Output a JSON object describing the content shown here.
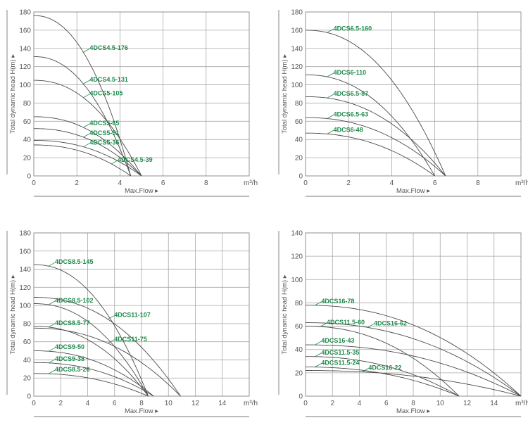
{
  "colors": {
    "curve": "#4a4a4a",
    "label": "#1f8a4c",
    "grid": "#a8a8a8"
  },
  "chart_data": [
    {
      "type": "line",
      "ylabel": "Total dynamic head H(m) ▸",
      "xlabel": "Max.Flow ▸",
      "xunit": "m³/h",
      "xlim": [
        0,
        10
      ],
      "ylim": [
        0,
        180
      ],
      "xticks": [
        0,
        2,
        4,
        6,
        8
      ],
      "yticks": [
        0,
        20,
        40,
        60,
        80,
        100,
        120,
        140,
        160,
        180
      ],
      "grid": true,
      "series": [
        {
          "name": "4DCS4.5-176",
          "shutoff_head": 176,
          "max_flow": 4.5
        },
        {
          "name": "4DCS4.5-131",
          "shutoff_head": 131,
          "max_flow": 4.5
        },
        {
          "name": "4DCS5-105",
          "shutoff_head": 105,
          "max_flow": 5
        },
        {
          "name": "4DCS5-65",
          "shutoff_head": 65,
          "max_flow": 5
        },
        {
          "name": "4DCS5-51",
          "shutoff_head": 52,
          "max_flow": 5
        },
        {
          "name": "4DCS5-36",
          "shutoff_head": 39,
          "max_flow": 5
        },
        {
          "name": "4DCS4.5-39",
          "shutoff_head": 34,
          "max_flow": 4.5
        }
      ]
    },
    {
      "type": "line",
      "ylabel": "Total dynamic head H(m) ▸",
      "xlabel": "Max.Flow ▸",
      "xunit": "m³/h",
      "xlim": [
        0,
        10
      ],
      "ylim": [
        0,
        180
      ],
      "xticks": [
        0,
        2,
        4,
        6,
        8
      ],
      "yticks": [
        0,
        20,
        40,
        60,
        80,
        100,
        120,
        140,
        160,
        180
      ],
      "grid": true,
      "series": [
        {
          "name": "4DCS6.5-160",
          "shutoff_head": 160,
          "max_flow": 6.5
        },
        {
          "name": "4DCS6-110",
          "shutoff_head": 111,
          "max_flow": 6
        },
        {
          "name": "4DCS6.5-87",
          "shutoff_head": 87,
          "max_flow": 6.5
        },
        {
          "name": "4DCS6.5-63",
          "shutoff_head": 64,
          "max_flow": 6.5
        },
        {
          "name": "4DCS6-48",
          "shutoff_head": 47,
          "max_flow": 6
        }
      ]
    },
    {
      "type": "line",
      "ylabel": "Total dynamic head H(m) ▸",
      "xlabel": "Max.Flow ▸",
      "xunit": "m³/h",
      "xlim": [
        0,
        16
      ],
      "ylim": [
        0,
        180
      ],
      "xticks": [
        0,
        2,
        4,
        6,
        8,
        10,
        12,
        14
      ],
      "yticks": [
        0,
        20,
        40,
        60,
        80,
        100,
        120,
        140,
        160,
        180
      ],
      "grid": true,
      "series": [
        {
          "name": "4DCS8.5-145",
          "shutoff_head": 145,
          "max_flow": 8.5
        },
        {
          "name": "4DCS8.5-102",
          "shutoff_head": 102,
          "max_flow": 8.5
        },
        {
          "name": "4DCS11-107",
          "shutoff_head": 109,
          "max_flow": 10.9
        },
        {
          "name": "4DCS8.5-77",
          "shutoff_head": 77,
          "max_flow": 8.5
        },
        {
          "name": "4DCS11-75",
          "shutoff_head": 75,
          "max_flow": 10.9
        },
        {
          "name": "4DCS9-50",
          "shutoff_head": 50,
          "max_flow": 8.9
        },
        {
          "name": "4DCS9-38",
          "shutoff_head": 37,
          "max_flow": 8.9
        },
        {
          "name": "4DCS8.5-26",
          "shutoff_head": 25,
          "max_flow": 8.5
        }
      ]
    },
    {
      "type": "line",
      "ylabel": "Total dynamic head H(m) ▸",
      "xlabel": "Max.Flow ▸",
      "xunit": "m³/h",
      "xlim": [
        0,
        16
      ],
      "ylim": [
        0,
        140
      ],
      "xticks": [
        0,
        2,
        4,
        6,
        8,
        10,
        12,
        14
      ],
      "yticks": [
        0,
        20,
        40,
        60,
        80,
        100,
        120,
        140
      ],
      "grid": true,
      "series": [
        {
          "name": "4DCS16-78",
          "shutoff_head": 78,
          "max_flow": 16
        },
        {
          "name": "4DCS11.5-60",
          "shutoff_head": 60,
          "max_flow": 11.4
        },
        {
          "name": "4DCS16-62",
          "shutoff_head": 63,
          "max_flow": 16
        },
        {
          "name": "4DCS16-43",
          "shutoff_head": 44,
          "max_flow": 16
        },
        {
          "name": "4DCS11.5-35",
          "shutoff_head": 34,
          "max_flow": 11.4
        },
        {
          "name": "4DCS11.5-24",
          "shutoff_head": 25,
          "max_flow": 11.4
        },
        {
          "name": "4DCS16-22",
          "shutoff_head": 22,
          "max_flow": 16
        }
      ]
    }
  ]
}
